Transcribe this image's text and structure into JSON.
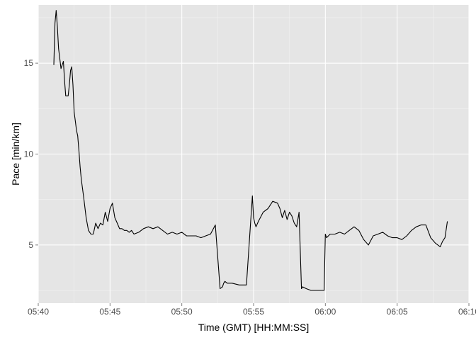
{
  "chart_data": {
    "type": "line",
    "xlabel": "Time (GMT) [HH:MM:SS]",
    "ylabel": "Pace [min/km]",
    "xlim": [
      "05:40:00",
      "06:10:00"
    ],
    "ylim": [
      1.8,
      18.2
    ],
    "x_ticks": [
      "05:40",
      "05:45",
      "05:50",
      "05:55",
      "06:00",
      "06:05",
      "06:10"
    ],
    "y_ticks": [
      5,
      10,
      15
    ],
    "grid": true,
    "colors": {
      "panel": "#e5e5e5",
      "grid_major": "#ffffff",
      "grid_minor": "#f2f2f2",
      "line": "#000000"
    },
    "series": [
      {
        "x": [
          "05:41:05",
          "05:41:10",
          "05:41:15",
          "05:41:20",
          "05:41:25",
          "05:41:35",
          "05:41:45",
          "05:41:50",
          "05:41:55",
          "05:42:05",
          "05:42:10",
          "05:42:15",
          "05:42:20",
          "05:42:25",
          "05:42:30",
          "05:42:35",
          "05:42:40",
          "05:42:45",
          "05:42:50",
          "05:42:55",
          "05:43:00",
          "05:43:10",
          "05:43:20",
          "05:43:30",
          "05:43:40",
          "05:43:45",
          "05:43:50",
          "05:44:00",
          "05:44:10",
          "05:44:20",
          "05:44:30",
          "05:44:40",
          "05:44:50",
          "05:45:00",
          "05:45:10",
          "05:45:20",
          "05:45:30",
          "05:45:40",
          "05:45:50",
          "05:46:00",
          "05:46:10",
          "05:46:20",
          "05:46:30",
          "05:46:40",
          "05:47:00",
          "05:47:20",
          "05:47:40",
          "05:48:00",
          "05:48:20",
          "05:48:40",
          "05:49:00",
          "05:49:20",
          "05:49:40",
          "05:50:00",
          "05:50:20",
          "05:50:40",
          "05:51:00",
          "05:51:20",
          "05:51:40",
          "05:52:00",
          "05:52:20",
          "05:52:40",
          "05:52:50",
          "05:52:55",
          "05:53:00",
          "05:53:10",
          "05:53:30",
          "05:54:00",
          "05:54:30",
          "05:54:55",
          "05:55:00",
          "05:55:05",
          "05:55:10",
          "05:55:20",
          "05:55:40",
          "05:56:00",
          "05:56:20",
          "05:56:40",
          "05:56:50",
          "05:57:00",
          "05:57:10",
          "05:57:20",
          "05:57:30",
          "05:57:40",
          "05:57:50",
          "05:58:00",
          "05:58:10",
          "05:58:20",
          "05:58:25",
          "05:58:40",
          "05:59:00",
          "05:59:30",
          "05:59:55",
          "06:00:00",
          "06:00:05",
          "06:00:20",
          "06:00:40",
          "06:01:00",
          "06:01:20",
          "06:01:40",
          "06:02:00",
          "06:02:20",
          "06:02:40",
          "06:03:00",
          "06:03:20",
          "06:03:40",
          "06:04:00",
          "06:04:20",
          "06:04:40",
          "06:05:00",
          "06:05:20",
          "06:05:40",
          "06:06:00",
          "06:06:20",
          "06:06:40",
          "06:07:00",
          "06:07:20",
          "06:07:40",
          "06:08:00",
          "06:08:10",
          "06:08:20",
          "06:08:30"
        ],
        "y": [
          14.9,
          17.2,
          17.9,
          17.0,
          15.8,
          14.7,
          15.1,
          14.0,
          13.2,
          13.2,
          13.8,
          14.6,
          14.8,
          13.8,
          12.3,
          11.8,
          11.3,
          11.0,
          10.2,
          9.3,
          8.6,
          7.6,
          6.5,
          5.8,
          5.6,
          5.6,
          5.6,
          6.2,
          5.9,
          6.2,
          6.1,
          6.8,
          6.3,
          7.0,
          7.3,
          6.5,
          6.2,
          5.9,
          5.9,
          5.8,
          5.8,
          5.7,
          5.8,
          5.6,
          5.7,
          5.9,
          6.0,
          5.9,
          6.0,
          5.8,
          5.6,
          5.7,
          5.6,
          5.7,
          5.5,
          5.5,
          5.5,
          5.4,
          5.5,
          5.6,
          6.1,
          2.6,
          2.7,
          2.9,
          3.0,
          2.9,
          2.9,
          2.8,
          2.8,
          7.7,
          6.5,
          6.2,
          6.0,
          6.3,
          6.8,
          7.0,
          7.4,
          7.3,
          7.0,
          6.5,
          6.9,
          6.4,
          6.8,
          6.6,
          6.2,
          6.0,
          6.8,
          2.6,
          2.7,
          2.6,
          2.5,
          2.5,
          2.5,
          5.6,
          5.4,
          5.6,
          5.6,
          5.7,
          5.6,
          5.8,
          6.0,
          5.8,
          5.3,
          5.0,
          5.5,
          5.6,
          5.7,
          5.5,
          5.4,
          5.4,
          5.3,
          5.5,
          5.8,
          6.0,
          6.1,
          6.1,
          5.4,
          5.1,
          4.9,
          5.2,
          5.4,
          6.3
        ]
      }
    ]
  }
}
